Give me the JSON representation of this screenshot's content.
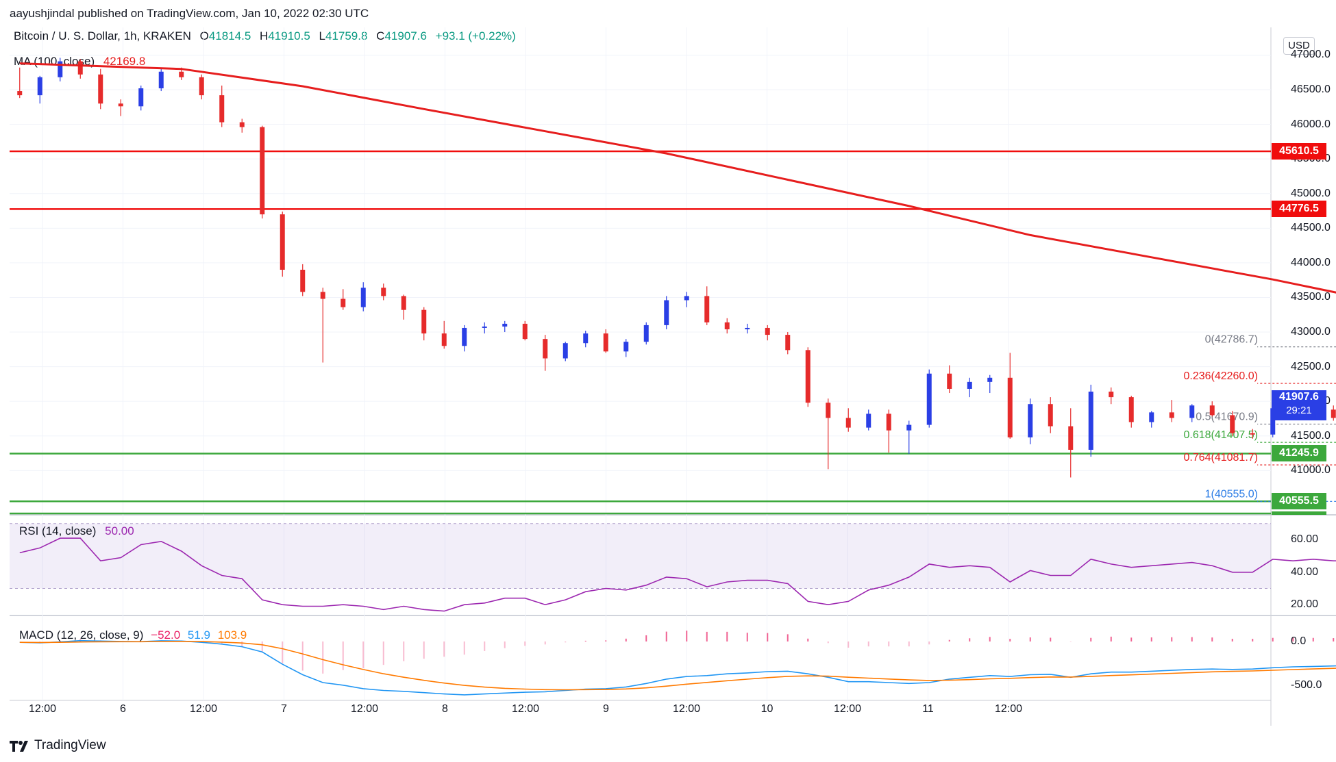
{
  "publisher": "aayushjindal published on TradingView.com, Jan 10, 2022 02:30 UTC",
  "legend": {
    "symbol": "Bitcoin / U. S. Dollar, 1h, KRAKEN",
    "o_label": "O",
    "o_value": "41814.5",
    "h_label": "H",
    "h_value": "41910.5",
    "l_label": "L",
    "l_value": "41759.8",
    "c_label": "C",
    "c_value": "41907.6",
    "change": "+93.1 (+0.22%)",
    "ma_label": "MA (100, close)",
    "ma_value": "42169.8",
    "rsi_label": "RSI (14, close)",
    "rsi_value": "50.00",
    "macd_label": "MACD (12, 26, close, 9)",
    "macd_v1": "−52.0",
    "macd_v2": "51.9",
    "macd_v3": "103.9"
  },
  "currency": "USD",
  "brand": "TradingView",
  "price_tag": {
    "price": "41907.6",
    "countdown": "29:21"
  },
  "colors": {
    "bull": "#2a3fe5",
    "bear": "#e62b2b",
    "ma": "#e61e1e",
    "resistance": "#f00d0d",
    "support": "#3ca83c",
    "channel": "#1515e8",
    "rsi": "#9c27b0",
    "macd": "#2196f3",
    "signal": "#ff7a00"
  },
  "chart_data": {
    "type": "candlestick",
    "title": "Bitcoin / U. S. Dollar, 1h, KRAKEN",
    "ylim": [
      40400,
      47400
    ],
    "y_ticks": [
      "47000.0",
      "46500.0",
      "46000.0",
      "45500.0",
      "45000.0",
      "44500.0",
      "44000.0",
      "43500.0",
      "43000.0",
      "42500.0",
      "42000.0",
      "41500.0",
      "41000.0"
    ],
    "x_ticks": [
      "12:00",
      "6",
      "12:00",
      "7",
      "12:00",
      "8",
      "12:00",
      "9",
      "12:00",
      "10",
      "12:00",
      "11",
      "12:00"
    ],
    "levels": {
      "resistance": [
        {
          "label": "45610.5",
          "value": 45610.5
        },
        {
          "label": "44776.5",
          "value": 44776.5
        }
      ],
      "support": [
        {
          "label": "41245.9",
          "value": 41245.9
        },
        {
          "label": "40555.5",
          "value": 40555.5
        }
      ],
      "partial": {
        "label": "40172.9",
        "value": 40172.9
      }
    },
    "fib": [
      {
        "ratio": "0",
        "label": "0(42786.7)",
        "value": 42786.7
      },
      {
        "ratio": "0.236",
        "label": "0.236(42260.0)",
        "value": 42260.0
      },
      {
        "ratio": "0.5",
        "label": "0.5(41670.9)",
        "value": 41670.9
      },
      {
        "ratio": "0.618",
        "label": "0.618(41407.5)",
        "value": 41407.5
      },
      {
        "ratio": "0.764",
        "label": "0.764(41081.7)",
        "value": 41081.7
      },
      {
        "ratio": "1",
        "label": "1(40555.0)",
        "value": 40555.0
      }
    ],
    "channel": {
      "upper": [
        [
          65.5,
          41780
        ],
        [
          93.5,
          42960
        ]
      ],
      "lower": [
        [
          68.5,
          40570
        ],
        [
          96.5,
          41680
        ]
      ]
    },
    "projection": [
      [
        95.5,
        41790
      ],
      [
        98.5,
        42820
      ],
      [
        101,
        42780
      ],
      [
        103.5,
        41250
      ]
    ],
    "fib_diagonal": [
      [
        69,
        40560
      ],
      [
        91,
        42786
      ]
    ],
    "ma100": [
      [
        0,
        46880
      ],
      [
        8,
        46800
      ],
      [
        14,
        46550
      ],
      [
        20,
        46220
      ],
      [
        26,
        45900
      ],
      [
        32,
        45580
      ],
      [
        38,
        45200
      ],
      [
        44,
        44820
      ],
      [
        50,
        44400
      ],
      [
        56,
        44080
      ],
      [
        62,
        43760
      ],
      [
        68,
        43400
      ],
      [
        74,
        43100
      ],
      [
        80,
        42750
      ],
      [
        86,
        42400
      ],
      [
        90,
        42200
      ],
      [
        92.5,
        42170
      ]
    ],
    "candles": [
      [
        46480,
        46820,
        46380,
        46420
      ],
      [
        46420,
        46700,
        46300,
        46680
      ],
      [
        46680,
        46960,
        46620,
        46910
      ],
      [
        46910,
        46940,
        46660,
        46720
      ],
      [
        46720,
        46800,
        46220,
        46300
      ],
      [
        46300,
        46360,
        46120,
        46260
      ],
      [
        46260,
        46560,
        46200,
        46520
      ],
      [
        46520,
        46800,
        46480,
        46760
      ],
      [
        46760,
        46820,
        46640,
        46680
      ],
      [
        46680,
        46720,
        46360,
        46420
      ],
      [
        46420,
        46560,
        45960,
        46030
      ],
      [
        46030,
        46080,
        45880,
        45960
      ],
      [
        45960,
        45980,
        44640,
        44700
      ],
      [
        44700,
        44740,
        43800,
        43900
      ],
      [
        43900,
        43980,
        43520,
        43580
      ],
      [
        43580,
        43640,
        42560,
        43480
      ],
      [
        43480,
        43620,
        43320,
        43360
      ],
      [
        43360,
        43720,
        43300,
        43640
      ],
      [
        43640,
        43700,
        43460,
        43520
      ],
      [
        43520,
        43540,
        43180,
        43320
      ],
      [
        43320,
        43360,
        42880,
        42980
      ],
      [
        42980,
        43160,
        42760,
        42800
      ],
      [
        42800,
        43100,
        42720,
        43060
      ],
      [
        43060,
        43140,
        42980,
        43080
      ],
      [
        43080,
        43160,
        43000,
        43120
      ],
      [
        43120,
        43160,
        42880,
        42900
      ],
      [
        42900,
        42960,
        42440,
        42620
      ],
      [
        42620,
        42860,
        42580,
        42840
      ],
      [
        42840,
        43020,
        42780,
        42980
      ],
      [
        42980,
        43040,
        42700,
        42720
      ],
      [
        42720,
        42900,
        42640,
        42860
      ],
      [
        42860,
        43140,
        42820,
        43100
      ],
      [
        43100,
        43520,
        43040,
        43460
      ],
      [
        43460,
        43580,
        43360,
        43520
      ],
      [
        43520,
        43660,
        43100,
        43140
      ],
      [
        43140,
        43200,
        42980,
        43040
      ],
      [
        43040,
        43120,
        42980,
        43060
      ],
      [
        43060,
        43100,
        42880,
        42960
      ],
      [
        42960,
        43000,
        42680,
        42740
      ],
      [
        42740,
        42780,
        41920,
        41980
      ],
      [
        41980,
        42040,
        41020,
        41760
      ],
      [
        41760,
        41900,
        41560,
        41620
      ],
      [
        41620,
        41880,
        41580,
        41820
      ],
      [
        41820,
        41880,
        41260,
        41580
      ],
      [
        41580,
        41720,
        41240,
        41660
      ],
      [
        41660,
        42460,
        41620,
        42400
      ],
      [
        42400,
        42520,
        42120,
        42180
      ],
      [
        42180,
        42340,
        42060,
        42280
      ],
      [
        42280,
        42380,
        42120,
        42340
      ],
      [
        42340,
        42700,
        41460,
        41480
      ],
      [
        41480,
        42040,
        41380,
        41960
      ],
      [
        41960,
        42060,
        41540,
        41640
      ],
      [
        41640,
        41900,
        40900,
        41300
      ],
      [
        41300,
        42240,
        41200,
        42140
      ],
      [
        42140,
        42200,
        41960,
        42060
      ],
      [
        42060,
        42080,
        41620,
        41700
      ],
      [
        41700,
        41860,
        41620,
        41840
      ],
      [
        41840,
        42020,
        41700,
        41760
      ],
      [
        41760,
        41960,
        41700,
        41940
      ],
      [
        41940,
        42000,
        41780,
        41800
      ],
      [
        41800,
        41860,
        41500,
        41540
      ],
      [
        41540,
        41600,
        41460,
        41520
      ],
      [
        41520,
        41940,
        41480,
        41900
      ],
      [
        41900,
        42080,
        41800,
        41840
      ],
      [
        41840,
        41920,
        41760,
        41880
      ],
      [
        41880,
        41940,
        41720,
        41760
      ],
      [
        41760,
        41900,
        41720,
        41860
      ],
      [
        41860,
        41940,
        41820,
        41900
      ],
      [
        41900,
        41960,
        41860,
        41920
      ],
      [
        41920,
        41960,
        41840,
        41880
      ],
      [
        41880,
        41980,
        41820,
        41860
      ],
      [
        41860,
        41960,
        41820,
        41920
      ],
      [
        41920,
        42100,
        41860,
        42060
      ],
      [
        42060,
        42100,
        41800,
        41820
      ],
      [
        41820,
        41940,
        41800,
        41900
      ],
      [
        41900,
        41960,
        41840,
        41880
      ],
      [
        41880,
        41920,
        41760,
        41800
      ],
      [
        41800,
        41920,
        41780,
        41880
      ],
      [
        41880,
        41900,
        41720,
        41740
      ],
      [
        41740,
        41780,
        41560,
        41620
      ],
      [
        41620,
        41660,
        41300,
        41360
      ],
      [
        41360,
        41400,
        40800,
        40860
      ],
      [
        40860,
        40900,
        40640,
        40680
      ],
      [
        40680,
        40760,
        40580,
        40720
      ],
      [
        40720,
        40900,
        40700,
        40880
      ],
      [
        40880,
        41720,
        40840,
        41700
      ],
      [
        41700,
        42320,
        41660,
        41880
      ],
      [
        41880,
        41920,
        41720,
        41760
      ],
      [
        41760,
        41880,
        41700,
        41820
      ],
      [
        41820,
        41960,
        41760,
        41900
      ],
      [
        41900,
        42240,
        41860,
        42180
      ],
      [
        42180,
        42280,
        41920,
        41960
      ],
      [
        41960,
        42140,
        41900,
        42100
      ],
      [
        42100,
        42180,
        41820,
        41860
      ],
      [
        41860,
        42000,
        41740,
        41780
      ],
      [
        41780,
        41820,
        41680,
        41720
      ],
      [
        41720,
        41780,
        41500,
        41540
      ],
      [
        41540,
        41720,
        41500,
        41660
      ],
      [
        41660,
        41760,
        41560,
        41620
      ],
      [
        41620,
        41940,
        41580,
        41900
      ],
      [
        41900,
        41940,
        41600,
        41640
      ],
      [
        41640,
        41700,
        41520,
        41560
      ],
      [
        41560,
        41660,
        41520,
        41620
      ],
      [
        41620,
        42120,
        41580,
        42080
      ],
      [
        42080,
        42140,
        41980,
        42040
      ],
      [
        42040,
        42120,
        41800,
        41820
      ],
      [
        41820,
        42740,
        41780,
        42700
      ],
      [
        42700,
        42760,
        42360,
        42420
      ],
      [
        42420,
        42500,
        42180,
        42220
      ],
      [
        42220,
        42300,
        42100,
        42180
      ],
      [
        42180,
        42220,
        41720,
        41760
      ],
      [
        41760,
        41820,
        41600,
        41640
      ],
      [
        41640,
        41800,
        41600,
        41760
      ],
      [
        41760,
        41910,
        41740,
        41907.6
      ]
    ],
    "rsi": {
      "ylim": [
        15,
        72
      ],
      "ticks": [
        "60.00",
        "40.00",
        "20.00"
      ],
      "band": [
        30,
        70
      ],
      "values": [
        52,
        55,
        61,
        61,
        47,
        49,
        57,
        59,
        53,
        44,
        38,
        36,
        23,
        20,
        19,
        19,
        20,
        19,
        17,
        19,
        17,
        16,
        20,
        21,
        24,
        24,
        20,
        23,
        28,
        30,
        29,
        32,
        37,
        36,
        31,
        34,
        35,
        35,
        33,
        22,
        20,
        22,
        29,
        32,
        37,
        45,
        43,
        44,
        43,
        34,
        41,
        38,
        38,
        48,
        45,
        43,
        44,
        45,
        46,
        44,
        40,
        40,
        48,
        47,
        48,
        47,
        47,
        48,
        48,
        48,
        47,
        48,
        51,
        46,
        47,
        46,
        45,
        46,
        44,
        40,
        34,
        25,
        24,
        27,
        32,
        53,
        53,
        50,
        52,
        54,
        57,
        52,
        55,
        54,
        50,
        50,
        47,
        51,
        49,
        47,
        49,
        54,
        53,
        50,
        45,
        47,
        63,
        60,
        55,
        52,
        45,
        48,
        50
      ]
    },
    "macd": {
      "ylim": [
        -650,
        250
      ],
      "ticks": [
        "0.0",
        "-500.0"
      ],
      "macd": [
        -10,
        -15,
        -5,
        10,
        5,
        0,
        -2,
        8,
        5,
        -10,
        -30,
        -60,
        -120,
        -260,
        -380,
        -470,
        -500,
        -540,
        -560,
        -570,
        -585,
        -600,
        -610,
        -600,
        -590,
        -580,
        -575,
        -560,
        -545,
        -540,
        -520,
        -480,
        -430,
        -400,
        -390,
        -370,
        -360,
        -345,
        -340,
        -370,
        -410,
        -460,
        -460,
        -470,
        -480,
        -470,
        -430,
        -410,
        -390,
        -400,
        -380,
        -375,
        -410,
        -370,
        -350,
        -350,
        -340,
        -330,
        -320,
        -315,
        -320,
        -315,
        -300,
        -290,
        -285,
        -280,
        -270,
        -265,
        -258,
        -252,
        -245,
        -238,
        -230,
        -225,
        -222,
        -220,
        -225,
        -232,
        -240,
        -255,
        -280,
        -330,
        -360,
        -370,
        -340,
        -280,
        -250,
        -225,
        -200,
        -175,
        -150,
        -120,
        -110,
        -90,
        -80,
        -70,
        -60,
        -40,
        -30,
        -25,
        -20,
        -15,
        -5,
        0,
        10,
        20,
        60,
        80,
        90,
        100,
        90,
        70,
        60
      ]
    }
  }
}
